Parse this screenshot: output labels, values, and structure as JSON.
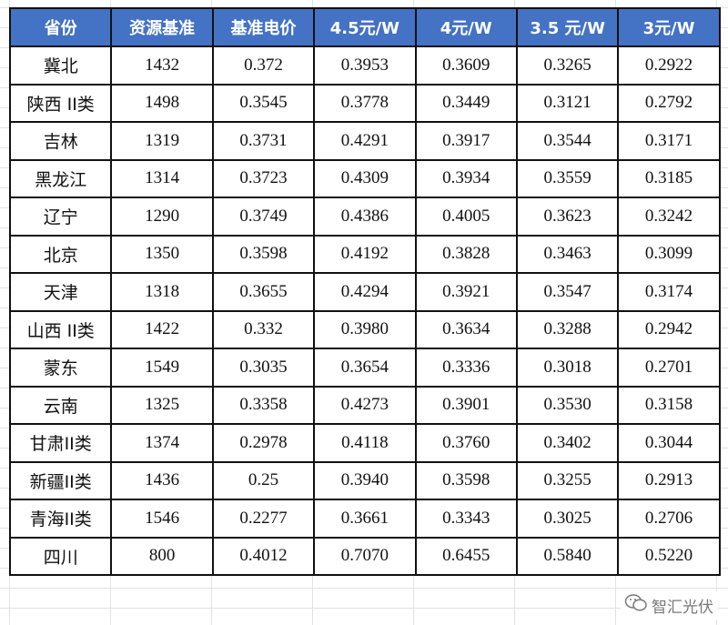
{
  "headers": [
    "省份",
    "资源基准",
    "基准电价",
    "4.5元/W",
    "4元/W",
    "3.5 元/W",
    "3元/W"
  ],
  "rows": [
    [
      "冀北",
      "1432",
      "0.372",
      "0.3953",
      "0.3609",
      "0.3265",
      "0.2922"
    ],
    [
      "陕西 II类",
      "1498",
      "0.3545",
      "0.3778",
      "0.3449",
      "0.3121",
      "0.2792"
    ],
    [
      "吉林",
      "1319",
      "0.3731",
      "0.4291",
      "0.3917",
      "0.3544",
      "0.3171"
    ],
    [
      "黑龙江",
      "1314",
      "0.3723",
      "0.4309",
      "0.3934",
      "0.3559",
      "0.3185"
    ],
    [
      "辽宁",
      "1290",
      "0.3749",
      "0.4386",
      "0.4005",
      "0.3623",
      "0.3242"
    ],
    [
      "北京",
      "1350",
      "0.3598",
      "0.4192",
      "0.3828",
      "0.3463",
      "0.3099"
    ],
    [
      "天津",
      "1318",
      "0.3655",
      "0.4294",
      "0.3921",
      "0.3547",
      "0.3174"
    ],
    [
      "山西 II类",
      "1422",
      "0.332",
      "0.3980",
      "0.3634",
      "0.3288",
      "0.2942"
    ],
    [
      "蒙东",
      "1549",
      "0.3035",
      "0.3654",
      "0.3336",
      "0.3018",
      "0.2701"
    ],
    [
      "云南",
      "1325",
      "0.3358",
      "0.4273",
      "0.3901",
      "0.3530",
      "0.3158"
    ],
    [
      "甘肃II类",
      "1374",
      "0.2978",
      "0.4118",
      "0.3760",
      "0.3402",
      "0.3044"
    ],
    [
      "新疆II类",
      "1436",
      "0.25",
      "0.3940",
      "0.3598",
      "0.3255",
      "0.2913"
    ],
    [
      "青海II类",
      "1546",
      "0.2277",
      "0.3661",
      "0.3343",
      "0.3025",
      "0.2706"
    ],
    [
      "四川",
      "800",
      "0.4012",
      "0.7070",
      "0.6455",
      "0.5840",
      "0.5220"
    ]
  ],
  "watermark": {
    "text": "智汇光伏",
    "icon": "wechat-icon"
  },
  "colors": {
    "header_bg": "#4472c4",
    "header_text": "#ffffff"
  }
}
